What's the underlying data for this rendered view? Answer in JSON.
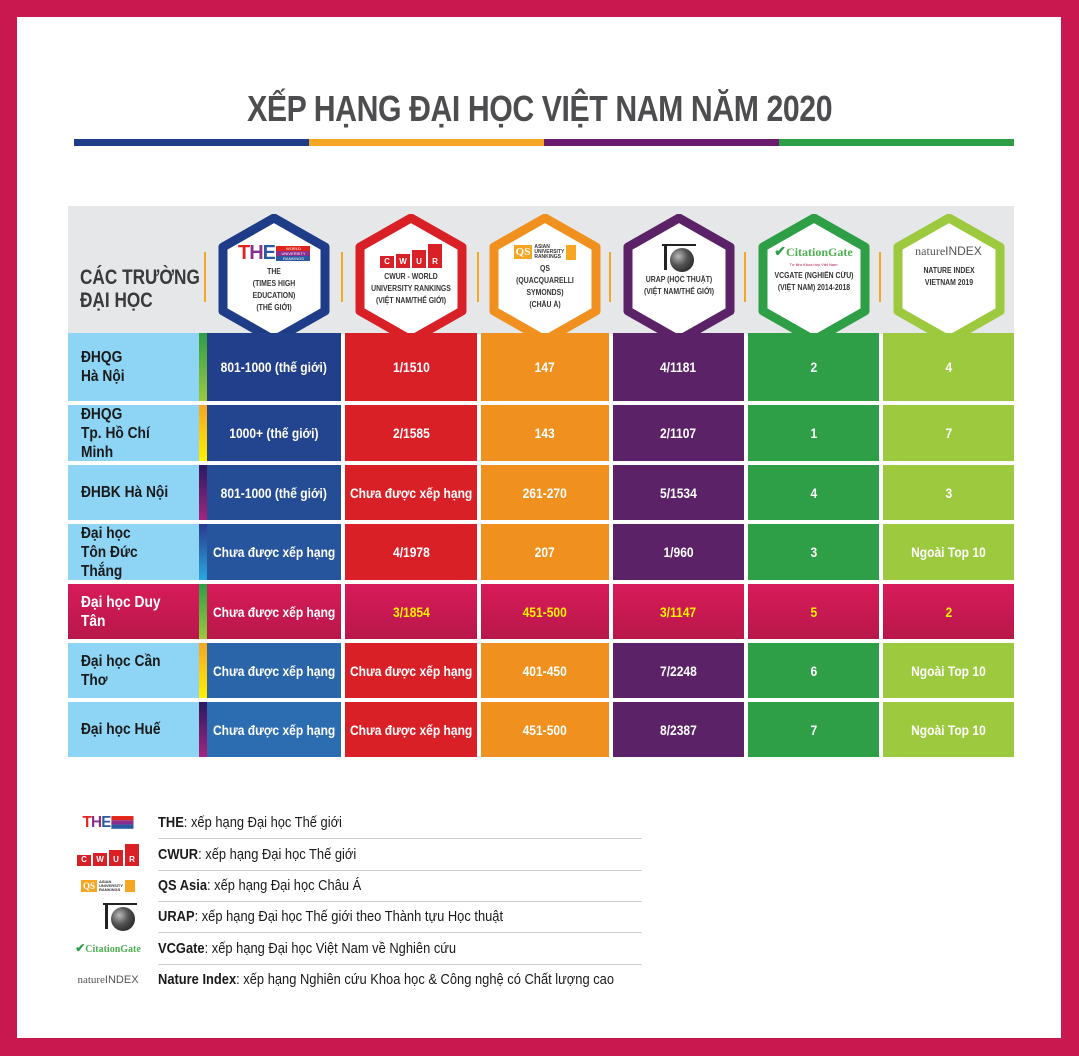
{
  "title": "XẾP HẠNG ĐẠI HỌC VIỆT NAM NĂM 2020",
  "title_bar_colors": [
    "#1f3c88",
    "#f5a623",
    "#6a1b6e",
    "#2e9e47"
  ],
  "header": {
    "schools_label_line1": "CÁC TRƯỜNG",
    "schools_label_line2": "ĐẠI HỌC"
  },
  "columns": [
    {
      "key": "the",
      "logo": "THE",
      "logo_bars": [
        "WORLD",
        "UNIVERSITY",
        "RANKINGS"
      ],
      "label_lines": [
        "THE",
        "(TIMES HIGH EDUCATION)",
        "(THẾ GIỚI)"
      ],
      "color": "#1f3c88"
    },
    {
      "key": "cwur",
      "logo": "CWUR",
      "logo_letters": [
        "C",
        "W",
        "U",
        "R"
      ],
      "label_lines": [
        "CWUR - WORLD",
        "UNIVERSITY RANKINGS",
        "(VIỆT NAM/THẾ GIỚI)"
      ],
      "color": "#d92027"
    },
    {
      "key": "qs",
      "logo": "QS",
      "logo_text": [
        "ASIAN",
        "UNIVERSITY",
        "RANKINGS"
      ],
      "label_lines": [
        "QS",
        "(QUACQUARELLI SYMONDS)",
        "(CHÂU Á)"
      ],
      "color": "#f0901e"
    },
    {
      "key": "urap",
      "logo": "globe-icon",
      "label_lines": [
        "URAP (HỌC THUẬT)",
        "(VIỆT NAM/THẾ GIỚI)"
      ],
      "color": "#5c2268"
    },
    {
      "key": "vcgate",
      "logo": "CitationGate",
      "logo_sub": "Tư liệu Khoa học Việt Nam",
      "label_lines": [
        "VCGATE (NGHIÊN CỨU)",
        "(VIỆT NAM) 2014-2018"
      ],
      "color": "#2e9e47"
    },
    {
      "key": "nature",
      "logo": "nature",
      "logo_suffix": "INDEX",
      "label_lines": [
        "NATURE INDEX",
        "VIETNAM 2019"
      ],
      "color": "#9cc93d"
    }
  ],
  "rows": [
    {
      "name": "ĐHQG\nHà Nội",
      "the": "801-1000 (thế giới)",
      "cwur": "1/1510",
      "qs": "147",
      "urap": "4/1181",
      "vcgate": "2",
      "nature": "4",
      "highlight": false
    },
    {
      "name": "ĐHQG\nTp. Hồ Chí Minh",
      "the": "1000+ (thế giới)",
      "cwur": "2/1585",
      "qs": "143",
      "urap": "2/1107",
      "vcgate": "1",
      "nature": "7",
      "highlight": false
    },
    {
      "name": "ĐHBK Hà Nội",
      "the": "801-1000 (thế giới)",
      "cwur": "Chưa được xếp hạng",
      "qs": "261-270",
      "urap": "5/1534",
      "vcgate": "4",
      "nature": "3",
      "highlight": false
    },
    {
      "name": "Đại học\nTôn Đức Thắng",
      "the": "Chưa được xếp hạng",
      "cwur": "4/1978",
      "qs": "207",
      "urap": "1/960",
      "vcgate": "3",
      "nature": "Ngoài Top 10",
      "highlight": false
    },
    {
      "name": "Đại học Duy Tân",
      "the": "Chưa được xếp hạng",
      "cwur": "3/1854",
      "qs": "451-500",
      "urap": "3/1147",
      "vcgate": "5",
      "nature": "2",
      "highlight": true
    },
    {
      "name": "Đại học Cần Thơ",
      "the": "Chưa được xếp hạng",
      "cwur": "Chưa được xếp hạng",
      "qs": "401-450",
      "urap": "7/2248",
      "vcgate": "6",
      "nature": "Ngoài Top 10",
      "highlight": false
    },
    {
      "name": "Đại học Huế",
      "the": "Chưa được xếp hạng",
      "cwur": "Chưa được xếp hạng",
      "qs": "451-500",
      "urap": "8/2387",
      "vcgate": "7",
      "nature": "Ngoài Top 10",
      "highlight": false
    }
  ],
  "legend": [
    {
      "key": "the",
      "term": "THE",
      "desc": ": xếp hạng Đại học Thế giới"
    },
    {
      "key": "cwur",
      "term": "CWUR",
      "desc": ": xếp hạng Đại học Thế giới"
    },
    {
      "key": "qs",
      "term": "QS Asia",
      "desc": ": xếp hạng Đại học Châu Á"
    },
    {
      "key": "urap",
      "term": "URAP",
      "desc": ": xếp hạng Đại học Thế giới theo Thành tựu Học thuật"
    },
    {
      "key": "vcgate",
      "term": "VCGate",
      "desc": ": xếp hạng Đại học Việt Nam về Nghiên cứu"
    },
    {
      "key": "nature",
      "term": "Nature Index",
      "desc": ": xếp hạng Nghiên cứu Khoa học & Công nghệ có Chất lượng cao"
    }
  ],
  "colors": {
    "frame": "#c8184f",
    "name_cell": "#8dd4f5",
    "highlight_row": "#c8184f",
    "highlight_text": "#fff200",
    "header_bg": "#e6e7e8"
  }
}
